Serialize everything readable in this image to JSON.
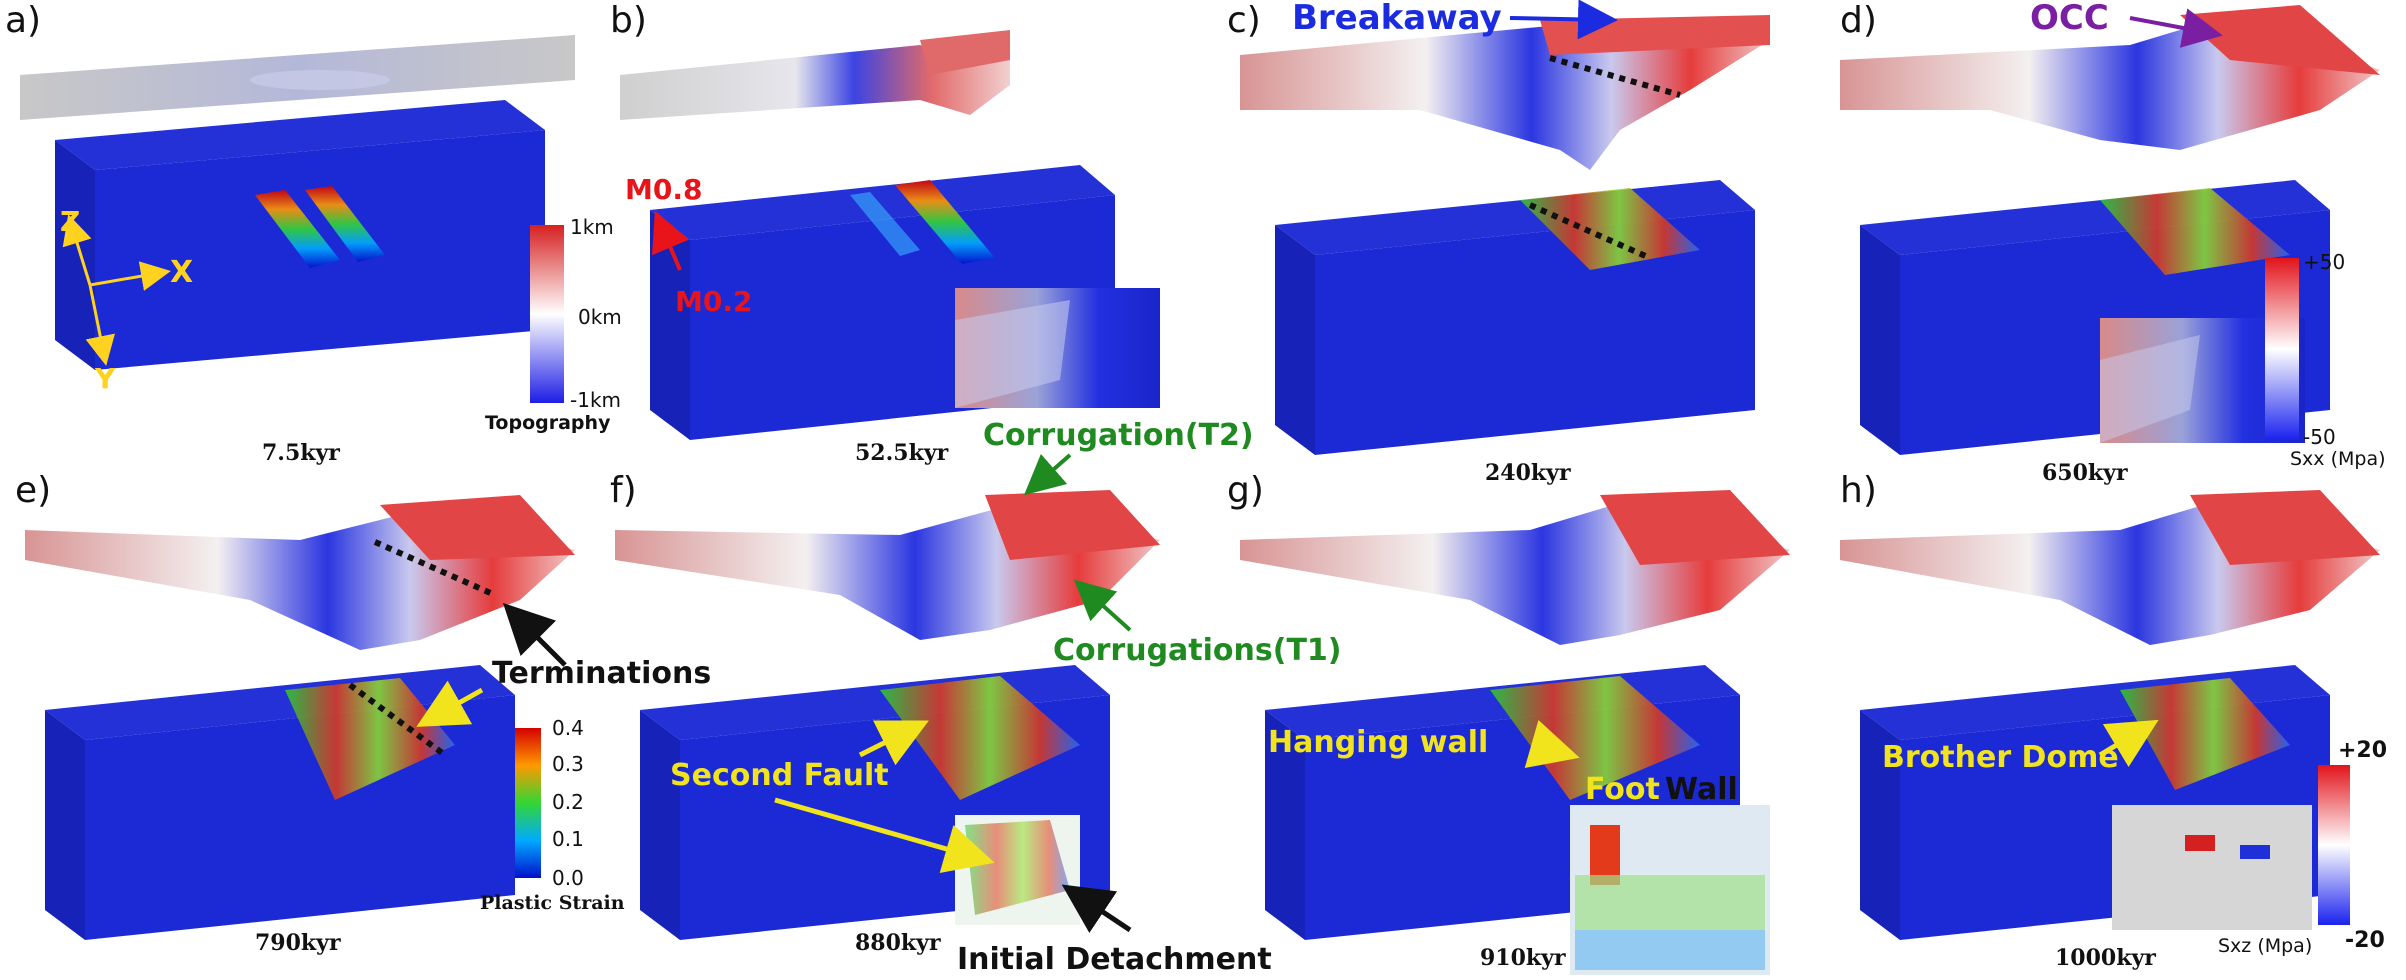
{
  "panels": [
    {
      "label": "a)",
      "time": "7.5kyr"
    },
    {
      "label": "b)",
      "time": "52.5kyr"
    },
    {
      "label": "c)",
      "time": "240kyr"
    },
    {
      "label": "d)",
      "time": "650kyr"
    },
    {
      "label": "e)",
      "time": "790kyr"
    },
    {
      "label": "f)",
      "time": "880kyr"
    },
    {
      "label": "g)",
      "time": "910kyr"
    },
    {
      "label": "h)",
      "time": "1000kyr"
    }
  ],
  "axes": {
    "z": "Z",
    "x": "X",
    "y": "Y"
  },
  "annotations": {
    "m08": "M0.8",
    "m02": "M0.2",
    "breakaway": "Breakaway",
    "occ": "OCC",
    "corrugation_t2": "Corrugation(T2)",
    "corrugations_t1": "Corrugations(T1)",
    "terminations": "Terminations",
    "second_fault": "Second Fault",
    "initial_detachment": "Initial Detachment",
    "hanging_wall": "Hanging wall",
    "foot": "Foot",
    "wall": "Wall",
    "brother_dome": "Brother Dome"
  },
  "colorbars": {
    "topography": {
      "top": "1km",
      "mid": "0km",
      "bottom": "-1km",
      "title": "Topography"
    },
    "sxx": {
      "top": "+50",
      "bottom": "-50",
      "title": "Sxx (Mpa)"
    },
    "plastic_strain": {
      "ticks": [
        "0.4",
        "0.3",
        "0.2",
        "0.1",
        "0.0"
      ],
      "title": "Plastic Strain"
    },
    "sxz": {
      "top": "+20",
      "bottom": "-20",
      "title": "Sxz (Mpa)"
    }
  },
  "colors": {
    "annotation_red": "#e8141a",
    "annotation_blue": "#1a2be0",
    "annotation_purple": "#7b1fa2",
    "annotation_green": "#1f8a1f",
    "annotation_yellow": "#f2e41c",
    "axis_yellow": "#ffd21f",
    "block_blue": "#1c2ad6"
  }
}
